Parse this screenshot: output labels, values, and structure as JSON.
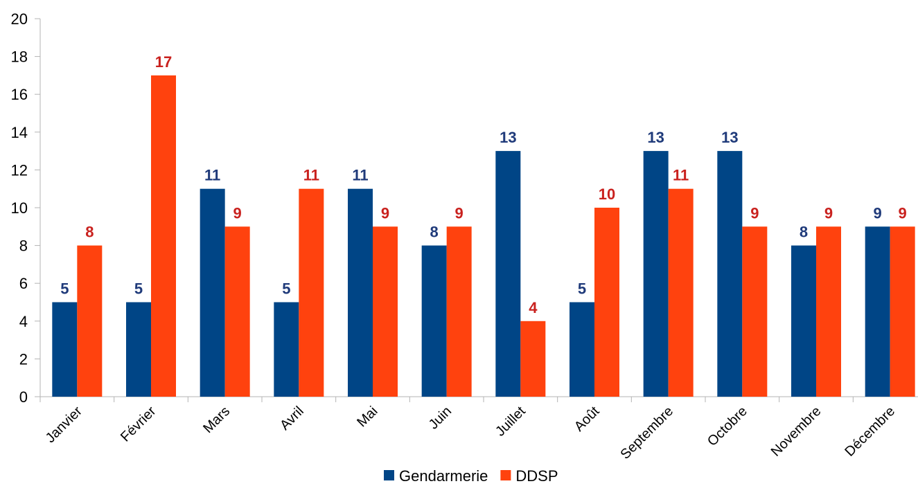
{
  "chart_data": {
    "type": "bar",
    "categories": [
      "Janvier",
      "Février",
      "Mars",
      "Avril",
      "Mai",
      "Juin",
      "Juillet",
      "Août",
      "Septembre",
      "Octobre",
      "Novembre",
      "Décembre"
    ],
    "series": [
      {
        "name": "Gendarmerie",
        "color": "#004586",
        "label_color": "#1f3a7a",
        "values": [
          5,
          5,
          11,
          5,
          11,
          8,
          13,
          5,
          13,
          13,
          8,
          9
        ]
      },
      {
        "name": "DDSP",
        "color": "#ff420e",
        "label_color": "#c9211e",
        "values": [
          8,
          17,
          9,
          11,
          9,
          9,
          4,
          10,
          11,
          9,
          9,
          9
        ]
      }
    ],
    "title": "",
    "xlabel": "",
    "ylabel": "",
    "ylim": [
      0,
      20
    ],
    "yticks": [
      0,
      2,
      4,
      6,
      8,
      10,
      12,
      14,
      16,
      18,
      20
    ],
    "grid": false,
    "legend": "bottom",
    "data_labels": true
  }
}
